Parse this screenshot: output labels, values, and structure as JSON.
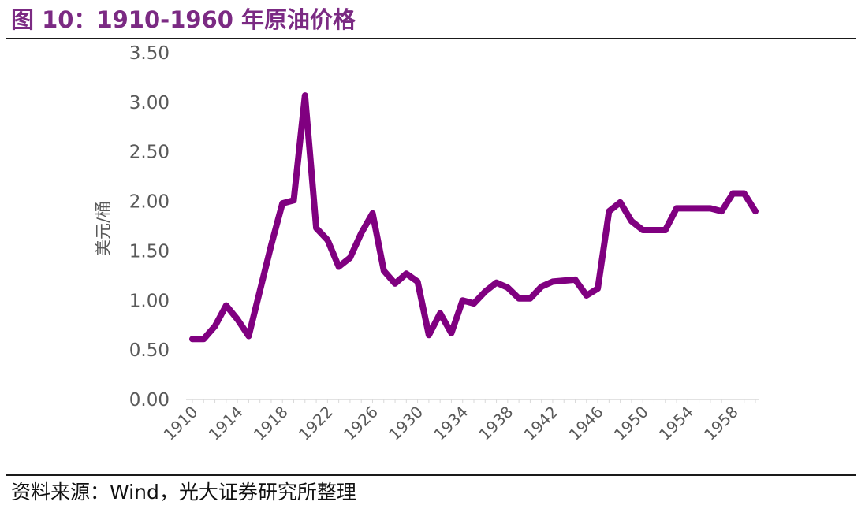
{
  "figure": {
    "title": "图 10：1910-1960 年原油价格",
    "source": "资料来源：Wind，光大证券研究所整理"
  },
  "chart_data": {
    "type": "line",
    "title": "1910-1960 年原油价格",
    "xlabel": "",
    "ylabel": "美元/桶",
    "ylim": [
      0,
      3.5
    ],
    "y_ticks": [
      "0.00",
      "0.50",
      "1.00",
      "1.50",
      "2.00",
      "2.50",
      "3.00",
      "3.50"
    ],
    "x_ticks": [
      "1910",
      "1914",
      "1918",
      "1922",
      "1926",
      "1930",
      "1934",
      "1938",
      "1942",
      "1946",
      "1950",
      "1954",
      "1958"
    ],
    "grid": false,
    "legend": "none",
    "line_color": "#800080",
    "series": [
      {
        "x": [
          1910,
          1911,
          1912,
          1913,
          1914,
          1915,
          1916,
          1917,
          1918,
          1919,
          1920,
          1921,
          1922,
          1923,
          1924,
          1925,
          1926,
          1927,
          1928,
          1929,
          1930,
          1931,
          1932,
          1933,
          1934,
          1935,
          1936,
          1937,
          1938,
          1939,
          1940,
          1941,
          1942,
          1943,
          1944,
          1945,
          1946,
          1947,
          1948,
          1949,
          1950,
          1951,
          1952,
          1953,
          1954,
          1955,
          1956,
          1957,
          1958,
          1959,
          1960
        ],
        "values": [
          0.61,
          0.61,
          0.74,
          0.95,
          0.81,
          0.64,
          1.1,
          1.56,
          1.98,
          2.01,
          3.07,
          1.73,
          1.61,
          1.34,
          1.43,
          1.68,
          1.88,
          1.3,
          1.17,
          1.27,
          1.19,
          0.65,
          0.87,
          0.67,
          1.0,
          0.97,
          1.09,
          1.18,
          1.13,
          1.02,
          1.02,
          1.14,
          1.19,
          1.2,
          1.21,
          1.05,
          1.12,
          1.9,
          1.99,
          1.8,
          1.71,
          1.71,
          1.71,
          1.93,
          1.93,
          1.93,
          1.93,
          1.9,
          2.08,
          2.08,
          1.9
        ]
      }
    ]
  }
}
